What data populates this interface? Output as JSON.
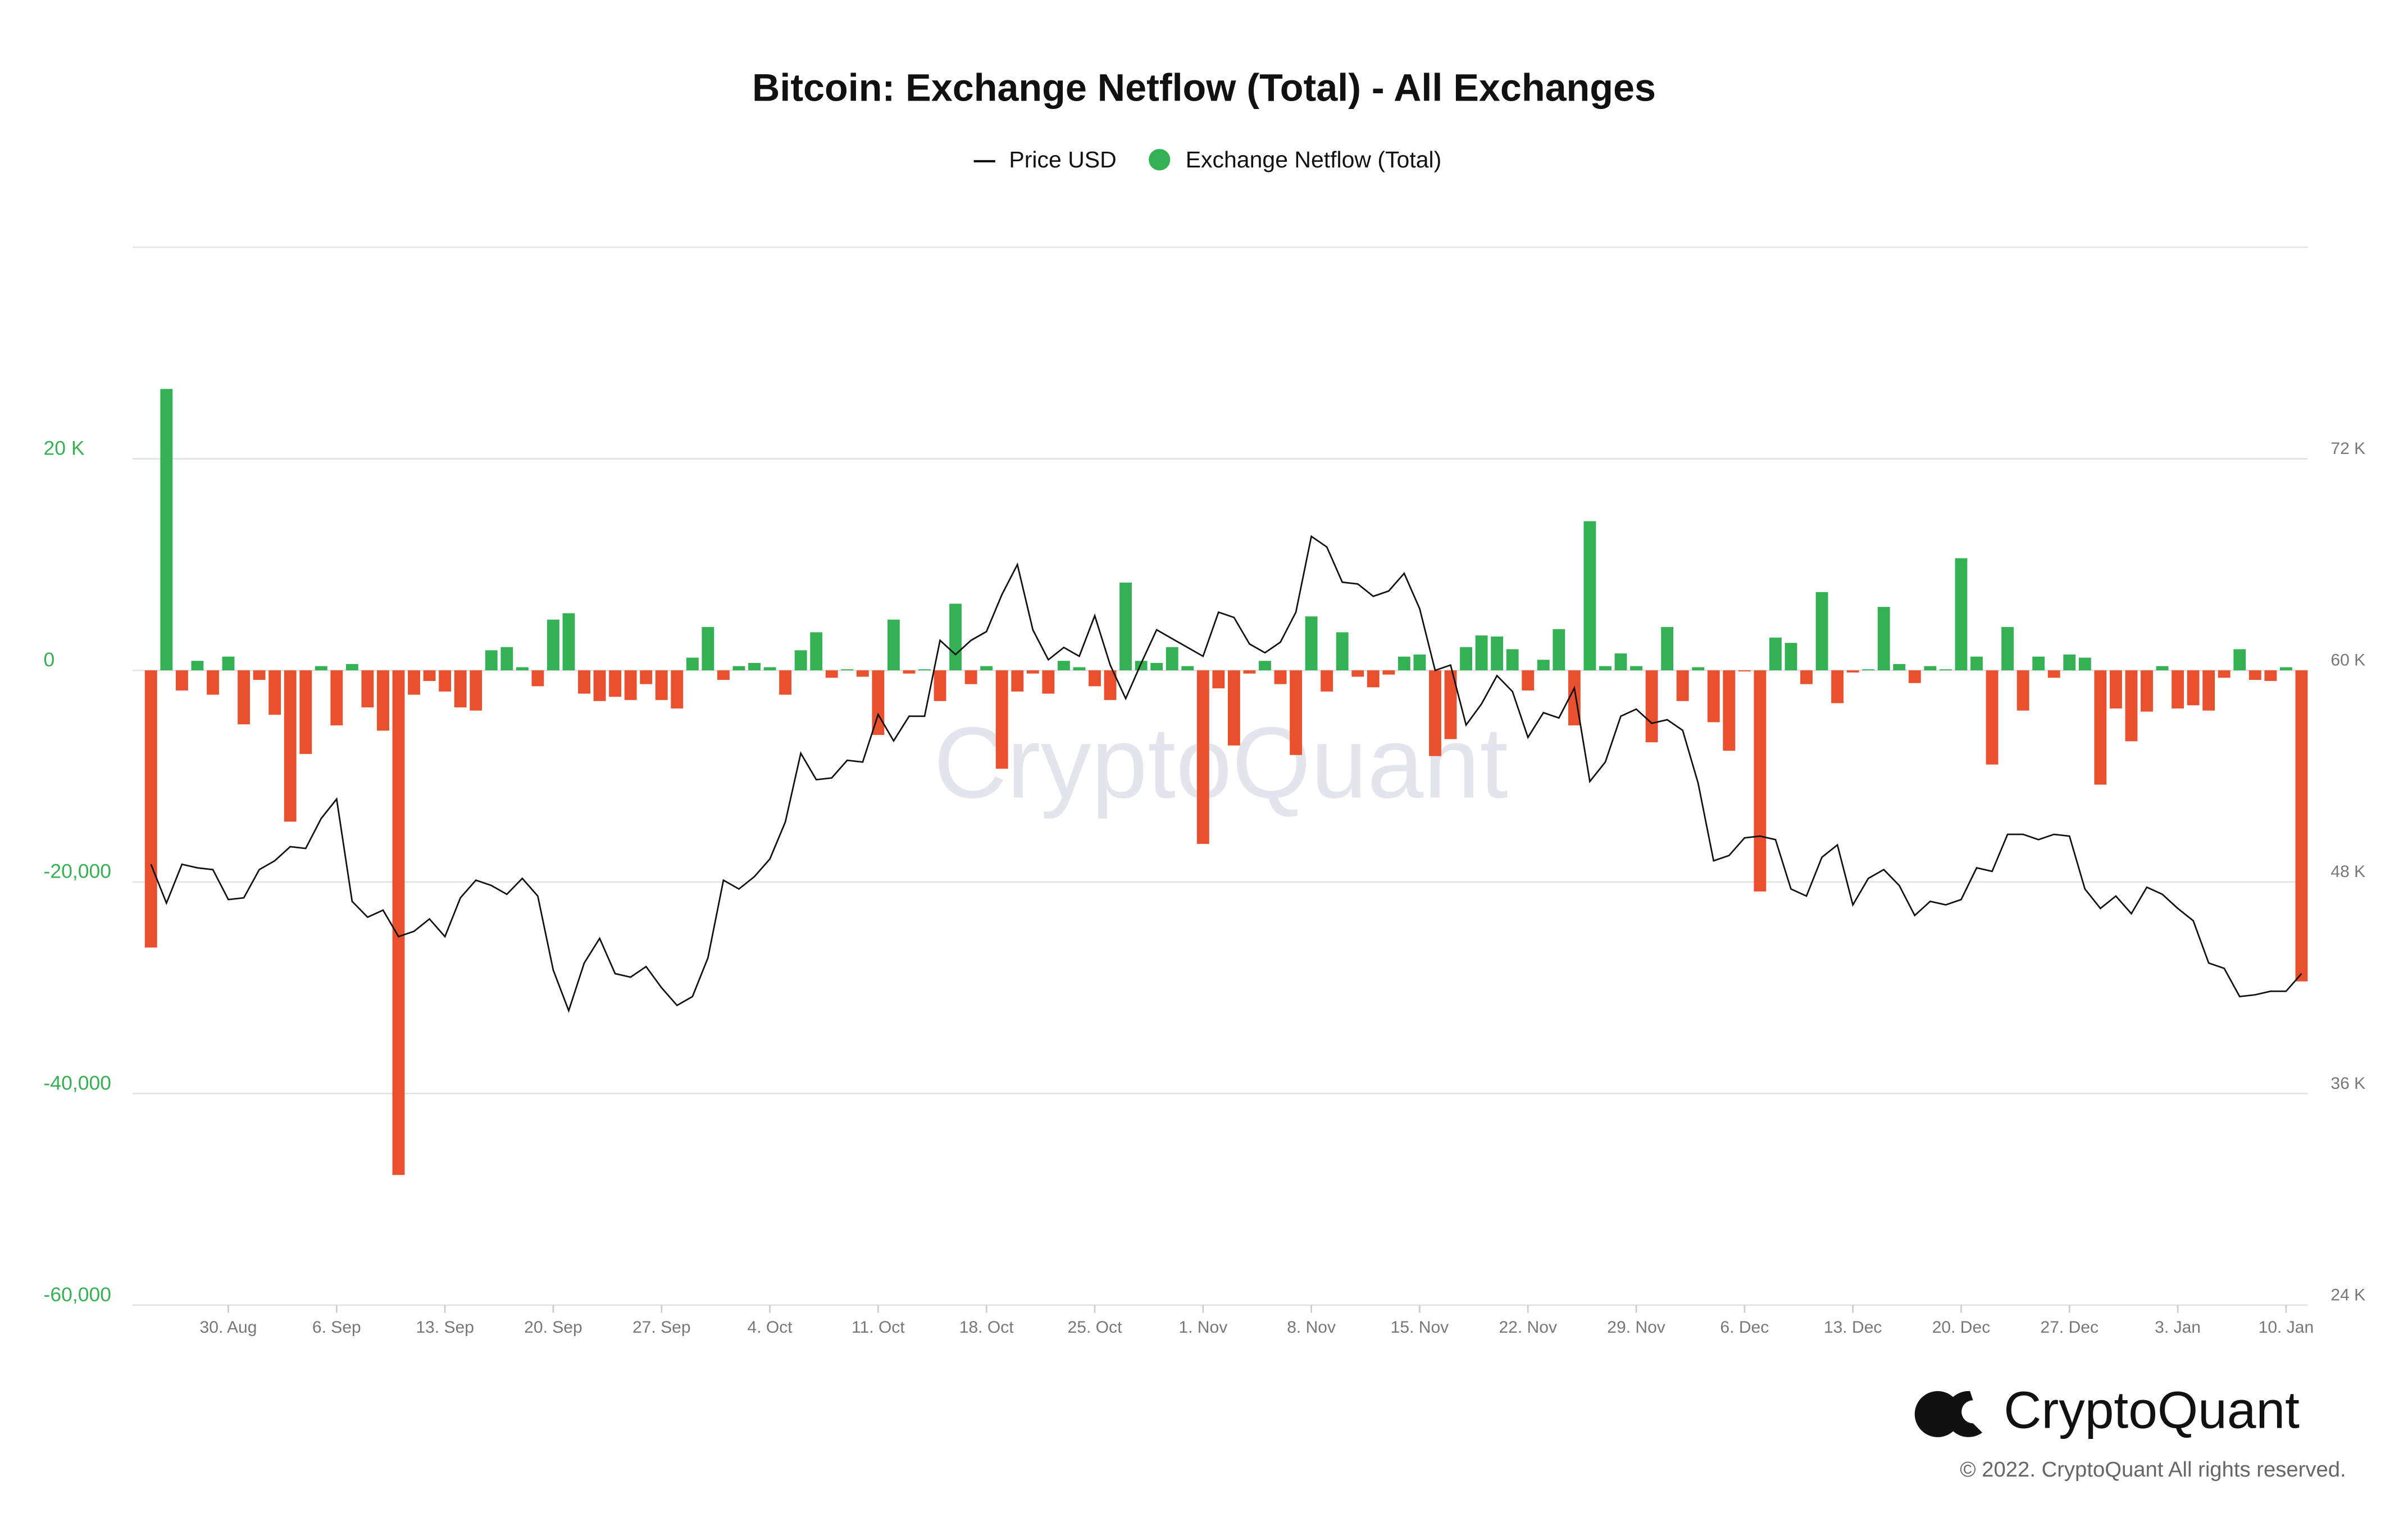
{
  "chart_data": {
    "type": "bar",
    "title": "Bitcoin: Exchange Netflow (Total) - All Exchanges",
    "categories": [
      null,
      null,
      null,
      null,
      null,
      "30. Aug",
      null,
      null,
      null,
      null,
      null,
      null,
      "6. Sep",
      null,
      null,
      null,
      null,
      null,
      null,
      "13. Sep",
      null,
      null,
      null,
      null,
      null,
      null,
      "20. Sep",
      null,
      null,
      null,
      null,
      null,
      null,
      "27. Sep",
      null,
      null,
      null,
      null,
      null,
      null,
      "4. Oct",
      null,
      null,
      null,
      null,
      null,
      null,
      "11. Oct",
      null,
      null,
      null,
      null,
      null,
      null,
      "18. Oct",
      null,
      null,
      null,
      null,
      null,
      null,
      "25. Oct",
      null,
      null,
      null,
      null,
      null,
      null,
      "1. Nov",
      null,
      null,
      null,
      null,
      null,
      null,
      "8. Nov",
      null,
      null,
      null,
      null,
      null,
      null,
      "15. Nov",
      null,
      null,
      null,
      null,
      null,
      null,
      "22. Nov",
      null,
      null,
      null,
      null,
      null,
      null,
      "29. Nov",
      null,
      null,
      null,
      null,
      null,
      null,
      "6. Dec",
      null,
      null,
      null,
      null,
      null,
      null,
      "13. Dec",
      null,
      null,
      null,
      null,
      null,
      null,
      "20. Dec",
      null,
      null,
      null,
      null,
      null,
      null,
      "27. Dec",
      null,
      null,
      null,
      null,
      null,
      null,
      "3. Jan",
      null,
      null,
      null,
      null,
      null,
      null,
      "10. Jan",
      null
    ],
    "series": [
      {
        "name": "Price USD",
        "type": "line",
        "axis": "y2",
        "color": "#111111",
        "values": [
          49000,
          46800,
          49000,
          48800,
          48700,
          47000,
          47100,
          48700,
          49200,
          50000,
          49900,
          51600,
          52700,
          46900,
          46000,
          46400,
          44900,
          45200,
          45900,
          44900,
          47100,
          48100,
          47800,
          47300,
          48200,
          47200,
          43000,
          40700,
          43400,
          44800,
          42800,
          42600,
          43200,
          42000,
          41000,
          41500,
          43700,
          48100,
          47600,
          48300,
          49300,
          51400,
          55300,
          53800,
          53900,
          54900,
          54800,
          57500,
          56000,
          57400,
          57400,
          61700,
          60900,
          61700,
          62200,
          64300,
          66000,
          62300,
          60600,
          61300,
          60800,
          63100,
          60300,
          58400,
          60400,
          62300,
          61800,
          61300,
          60800,
          63300,
          63000,
          61500,
          61000,
          61600,
          63300,
          67600,
          67000,
          65000,
          64900,
          64200,
          64500,
          65500,
          63500,
          60000,
          60300,
          56900,
          58100,
          59700,
          58800,
          56200,
          57600,
          57300,
          59000,
          53700,
          54800,
          57400,
          57800,
          57000,
          57200,
          56600,
          53600,
          49200,
          49500,
          50500,
          50600,
          50400,
          47600,
          47200,
          49400,
          50100,
          46700,
          48200,
          48700,
          47800,
          46100,
          46900,
          46700,
          47000,
          48800,
          48600,
          50700,
          50700,
          50400,
          50700,
          50600,
          47600,
          46500,
          47200,
          46200,
          47700,
          47300,
          46500,
          45800,
          43400,
          43100,
          41500,
          41600,
          41800,
          41800,
          42800
        ]
      },
      {
        "name": "Exchange Netflow (Total)",
        "type": "bar",
        "color": "#34b153",
        "negative_color": "#e8502e",
        "values": [
          -26200,
          26600,
          -1900,
          900,
          -2300,
          1300,
          -5100,
          -900,
          -4200,
          -14300,
          -7900,
          400,
          -5200,
          600,
          -3500,
          -5700,
          -47700,
          -2300,
          -1000,
          -2000,
          -3500,
          -3800,
          1900,
          2200,
          300,
          -1500,
          4800,
          5400,
          -2200,
          -2900,
          -2500,
          -2800,
          -1300,
          -2800,
          -3600,
          1200,
          4100,
          -900,
          400,
          700,
          300,
          -2300,
          1900,
          3600,
          -700,
          100,
          -600,
          -6100,
          4800,
          -300,
          100,
          -2900,
          6300,
          -1300,
          400,
          -9300,
          -2000,
          -300,
          -2200,
          900,
          300,
          -1500,
          -2800,
          8300,
          900,
          700,
          2200,
          400,
          -16400,
          -1700,
          -7100,
          -300,
          900,
          -1300,
          -8000,
          5100,
          -2000,
          3600,
          -600,
          -1600,
          -400,
          1300,
          1500,
          -8100,
          -6500,
          2200,
          3300,
          3200,
          2000,
          -1900,
          1000,
          3900,
          -5200,
          14100,
          400,
          1600,
          400,
          -6800,
          4100,
          -2900,
          300,
          -4900,
          -7600,
          -100,
          -20900,
          3100,
          2600,
          -1300,
          7400,
          -3100,
          -200,
          100,
          6000,
          600,
          -1200,
          400,
          100,
          10600,
          1300,
          -8900,
          4100,
          -3800,
          1300,
          -700,
          1500,
          1200,
          -10800,
          -3600,
          -6700,
          -3900,
          400,
          -3600,
          -3300,
          -3800,
          -700,
          2000,
          -900,
          -1000,
          300,
          -29400
        ]
      }
    ],
    "ylim": [
      -60000,
      40000
    ],
    "yticks": [
      {
        "value": 20000,
        "label": "20 K"
      },
      0,
      {
        "value": -20000,
        "label": "-20,000"
      },
      {
        "value": -40000,
        "label": "-40,000"
      },
      {
        "value": -60000,
        "label": "-60,000"
      }
    ],
    "y2lim": [
      24000,
      84000
    ],
    "y2ticks": [
      {
        "value": 72000,
        "label": "72 K"
      },
      {
        "value": 60000,
        "label": "60 K"
      },
      {
        "value": 48000,
        "label": "48 K"
      },
      {
        "value": 36000,
        "label": "36 K"
      },
      {
        "value": 24000,
        "label": "24 K"
      }
    ],
    "grid": true,
    "legend": "top",
    "watermark": "CryptoQuant",
    "brand": "CryptoQuant",
    "copyright": "© 2022. CryptoQuant All rights reserved."
  }
}
